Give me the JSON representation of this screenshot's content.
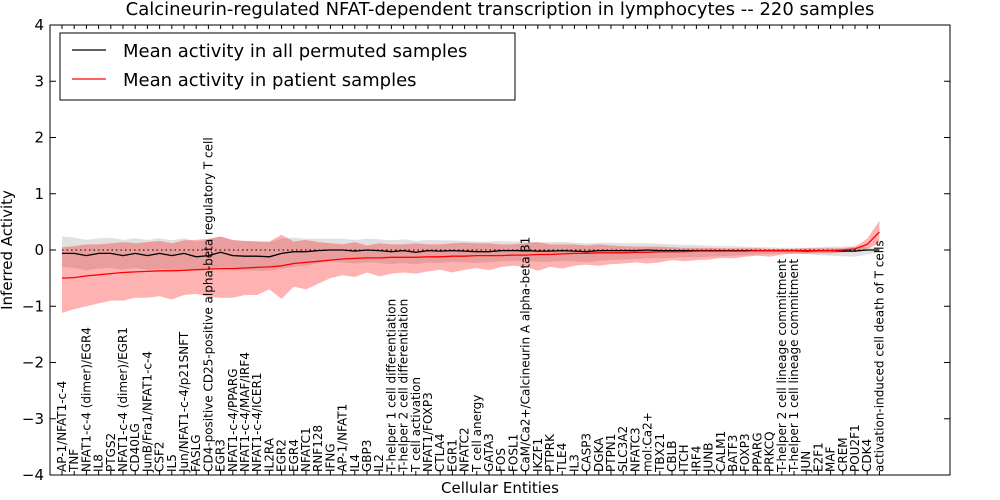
{
  "chart_data": {
    "type": "line",
    "title": "Calcineurin-regulated NFAT-dependent transcription in lymphocytes -- 220 samples",
    "xlabel": "Cellular Entities",
    "ylabel": "Inferred Activity",
    "ylim": [
      -4,
      4
    ],
    "yticks": [
      -4,
      -3,
      -2,
      -1,
      0,
      1,
      2,
      3,
      4
    ],
    "ytick_labels": [
      "−4",
      "−3",
      "−2",
      "−1",
      "0",
      "1",
      "2",
      "3",
      "4"
    ],
    "grid": false,
    "legend": {
      "position": "top-left"
    },
    "categories": [
      "AP-1/NFAT1-c-4",
      "TNF",
      "NFAT1-c-4 (dimer)/EGR4",
      "IL8",
      "PTGS2",
      "NFAT1-c-4 (dimer)/EGR1",
      "CD40LG",
      "JunB/Fra1/NFAT1-c-4",
      "CSF2",
      "IL5",
      "Jun/NFAT1-c-4/p21SNFT",
      "FASLG",
      "CD4-positive CD25-positive alpha-beta regulatory T cell",
      "EGR3",
      "NFAT1-c-4/PPARG",
      "NFAT1-c-4/MAF/IRF4",
      "NFAT1-c-4/ICER1",
      "IL2RA",
      "EGR2",
      "EGR4",
      "NFATC1",
      "RNF128",
      "IFNG",
      "AP-1/NFAT1",
      "IL4",
      "GBP3",
      "IL2",
      "T-helper 1 cell differentiation",
      "T-helper 2 cell differentiation",
      "T cell activation",
      "NFAT1/FOXP3",
      "CTLA4",
      "EGR1",
      "NFATC2",
      "T cell anergy",
      "GATA3",
      "FOS",
      "FOSL1",
      "CaM/Ca2+/Calcineurin A alpha-beta B1",
      "IKZF1",
      "PTPRK",
      "TLE4",
      "IL3",
      "CASP3",
      "DGKA",
      "PTPN1",
      "SLC3A2",
      "NFATC3",
      "mol:Ca2+",
      "TBX21",
      "CBLB",
      "ITCH",
      "IRF4",
      "JUNB",
      "CALM1",
      "BATF3",
      "FOXP3",
      "PPARG",
      "PRKCQ",
      "T-helper 2 cell lineage commitment",
      "T-helper 1 cell lineage commitment",
      "JUN",
      "E2F1",
      "MAF",
      "CREM",
      "POU2F1",
      "CDK4",
      "activation-induced cell death of T cells"
    ],
    "series": [
      {
        "name": "Mean activity in all permuted samples",
        "color": "#000000",
        "values": [
          -0.06,
          -0.06,
          -0.1,
          -0.06,
          -0.06,
          -0.1,
          -0.06,
          -0.1,
          -0.06,
          -0.1,
          -0.06,
          -0.12,
          -0.1,
          -0.04,
          -0.1,
          -0.11,
          -0.11,
          -0.12,
          -0.06,
          -0.03,
          -0.03,
          -0.01,
          0,
          0,
          -0.02,
          0,
          -0.01,
          -0.03,
          -0.01,
          -0.04,
          -0.01,
          -0.02,
          -0.01,
          -0.02,
          -0.03,
          -0.03,
          -0.01,
          -0.01,
          -0.01,
          -0.02,
          -0.02,
          -0.01,
          -0.02,
          -0.03,
          -0.01,
          -0.01,
          -0.01,
          -0.01,
          0,
          -0.01,
          -0.01,
          -0.01,
          -0.01,
          -0.01,
          -0.01,
          -0.01,
          -0.01,
          -0.01,
          -0.01,
          -0.01,
          -0.01,
          -0.02,
          -0.01,
          -0.01,
          -0.02,
          -0.02,
          0,
          0
        ],
        "lower": [
          -0.3,
          -0.32,
          -0.36,
          -0.33,
          -0.32,
          -0.35,
          -0.32,
          -0.35,
          -0.33,
          -0.36,
          -0.33,
          -0.37,
          -0.36,
          -0.3,
          -0.35,
          -0.36,
          -0.37,
          -0.37,
          -0.33,
          -0.3,
          -0.28,
          -0.24,
          -0.2,
          -0.22,
          -0.24,
          -0.22,
          -0.23,
          -0.25,
          -0.23,
          -0.26,
          -0.22,
          -0.23,
          -0.21,
          -0.22,
          -0.23,
          -0.22,
          -0.2,
          -0.2,
          -0.19,
          -0.21,
          -0.21,
          -0.19,
          -0.2,
          -0.22,
          -0.19,
          -0.18,
          -0.17,
          -0.16,
          -0.15,
          -0.15,
          -0.14,
          -0.13,
          -0.13,
          -0.12,
          -0.11,
          -0.1,
          -0.09,
          -0.08,
          -0.07,
          -0.06,
          -0.06,
          -0.07,
          -0.09,
          -0.1,
          -0.11,
          -0.12,
          -0.08,
          -0.04
        ],
        "upper": [
          0.24,
          0.22,
          0.18,
          0.21,
          0.22,
          0.18,
          0.21,
          0.18,
          0.21,
          0.17,
          0.21,
          0.15,
          0.18,
          0.24,
          0.17,
          0.16,
          0.16,
          0.14,
          0.2,
          0.22,
          0.2,
          0.2,
          0.2,
          0.2,
          0.18,
          0.2,
          0.19,
          0.17,
          0.19,
          0.16,
          0.18,
          0.17,
          0.17,
          0.16,
          0.15,
          0.15,
          0.16,
          0.15,
          0.15,
          0.14,
          0.14,
          0.15,
          0.13,
          0.12,
          0.13,
          0.13,
          0.12,
          0.12,
          0.12,
          0.11,
          0.1,
          0.09,
          0.09,
          0.08,
          0.07,
          0.07,
          0.06,
          0.05,
          0.05,
          0.04,
          0.04,
          0.04,
          0.05,
          0.06,
          0.06,
          0.06,
          0.05,
          0.04
        ]
      },
      {
        "name": "Mean activity in patient samples",
        "color": "#ff0000",
        "values": [
          -0.5,
          -0.49,
          -0.46,
          -0.44,
          -0.42,
          -0.4,
          -0.39,
          -0.38,
          -0.37,
          -0.37,
          -0.36,
          -0.35,
          -0.34,
          -0.33,
          -0.33,
          -0.32,
          -0.31,
          -0.3,
          -0.28,
          -0.24,
          -0.22,
          -0.2,
          -0.18,
          -0.16,
          -0.15,
          -0.14,
          -0.14,
          -0.13,
          -0.13,
          -0.13,
          -0.12,
          -0.12,
          -0.11,
          -0.11,
          -0.1,
          -0.1,
          -0.1,
          -0.09,
          -0.09,
          -0.08,
          -0.08,
          -0.07,
          -0.06,
          -0.06,
          -0.05,
          -0.05,
          -0.05,
          -0.04,
          -0.04,
          -0.03,
          -0.03,
          -0.03,
          -0.02,
          -0.02,
          -0.02,
          -0.02,
          -0.02,
          -0.01,
          -0.01,
          -0.01,
          -0.01,
          -0.01,
          -0.01,
          -0.01,
          0,
          0.02,
          0.1,
          0.32
        ],
        "lower": [
          -1.12,
          -1.05,
          -1.0,
          -0.95,
          -0.9,
          -0.9,
          -0.85,
          -0.85,
          -0.82,
          -0.88,
          -0.8,
          -0.78,
          -0.83,
          -0.85,
          -0.85,
          -0.8,
          -0.8,
          -0.7,
          -0.87,
          -0.65,
          -0.7,
          -0.6,
          -0.5,
          -0.45,
          -0.48,
          -0.4,
          -0.47,
          -0.42,
          -0.4,
          -0.42,
          -0.38,
          -0.35,
          -0.4,
          -0.35,
          -0.32,
          -0.36,
          -0.3,
          -0.28,
          -0.3,
          -0.37,
          -0.3,
          -0.33,
          -0.28,
          -0.26,
          -0.28,
          -0.25,
          -0.24,
          -0.22,
          -0.24,
          -0.22,
          -0.18,
          -0.2,
          -0.18,
          -0.17,
          -0.14,
          -0.15,
          -0.12,
          -0.1,
          -0.12,
          -0.08,
          -0.07,
          -0.07,
          -0.06,
          -0.06,
          -0.04,
          -0.03,
          0.02,
          0.12
        ],
        "upper": [
          0.05,
          0.07,
          0.1,
          0.1,
          0.12,
          0.14,
          0.12,
          0.14,
          0.16,
          0.12,
          0.17,
          0.18,
          0.2,
          0.24,
          0.18,
          0.16,
          0.15,
          0.15,
          0.27,
          0.15,
          0.18,
          0.14,
          0.12,
          0.1,
          0.14,
          0.08,
          0.12,
          0.1,
          0.1,
          0.12,
          0.1,
          0.1,
          0.12,
          0.13,
          0.12,
          0.12,
          0.1,
          0.1,
          0.12,
          0.14,
          0.1,
          0.1,
          0.1,
          0.08,
          0.1,
          0.08,
          0.07,
          0.06,
          0.06,
          0.06,
          0.05,
          0.04,
          0.04,
          0.04,
          0.03,
          0.03,
          0.03,
          0.03,
          0.02,
          0.02,
          0.02,
          0.03,
          0.03,
          0.03,
          0.03,
          0.06,
          0.2,
          0.52
        ]
      }
    ]
  }
}
